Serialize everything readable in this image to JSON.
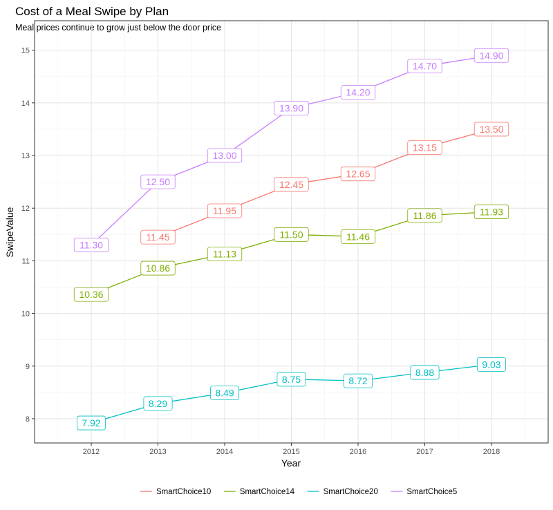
{
  "chart_data": {
    "type": "line",
    "title": "Cost of a Meal Swipe by Plan",
    "subtitle": "Meal prices continue to grow just below the door price",
    "xlabel": "Year",
    "ylabel": "SwipeValue",
    "x": [
      2012,
      2013,
      2014,
      2015,
      2016,
      2017,
      2018
    ],
    "xticks": [
      "2012",
      "2013",
      "2014",
      "2015",
      "2016",
      "2017",
      "2018"
    ],
    "yticks": [
      "8",
      "9",
      "10",
      "11",
      "12",
      "13",
      "14",
      "15"
    ],
    "xlim": [
      2011.15,
      2018.85
    ],
    "ylim": [
      7.54,
      15.56
    ],
    "grid": true,
    "legend_position": "bottom",
    "series": [
      {
        "name": "SmartChoice10",
        "color": "#F8766D",
        "x": [
          2013,
          2014,
          2015,
          2016,
          2017,
          2018
        ],
        "values": [
          11.45,
          11.95,
          12.45,
          12.65,
          13.15,
          13.5
        ],
        "labels": [
          "11.45",
          "11.95",
          "12.45",
          "12.65",
          "13.15",
          "13.50"
        ]
      },
      {
        "name": "SmartChoice14",
        "color": "#7CAE00",
        "x": [
          2012,
          2013,
          2014,
          2015,
          2016,
          2017,
          2018
        ],
        "values": [
          10.36,
          10.86,
          11.13,
          11.5,
          11.46,
          11.86,
          11.93
        ],
        "labels": [
          "10.36",
          "10.86",
          "11.13",
          "11.50",
          "11.46",
          "11.86",
          "11.93"
        ]
      },
      {
        "name": "SmartChoice20",
        "color": "#00BFC4",
        "x": [
          2012,
          2013,
          2014,
          2015,
          2016,
          2017,
          2018
        ],
        "values": [
          7.92,
          8.29,
          8.49,
          8.75,
          8.72,
          8.88,
          9.03
        ],
        "labels": [
          "7.92",
          "8.29",
          "8.49",
          "8.75",
          "8.72",
          "8.88",
          "9.03"
        ]
      },
      {
        "name": "SmartChoice5",
        "color": "#C77CFF",
        "x": [
          2012,
          2013,
          2014,
          2015,
          2016,
          2017,
          2018
        ],
        "values": [
          11.3,
          12.5,
          13.0,
          13.9,
          14.2,
          14.7,
          14.9
        ],
        "labels": [
          "11.30",
          "12.50",
          "13.00",
          "13.90",
          "14.20",
          "14.70",
          "14.90"
        ]
      }
    ]
  }
}
